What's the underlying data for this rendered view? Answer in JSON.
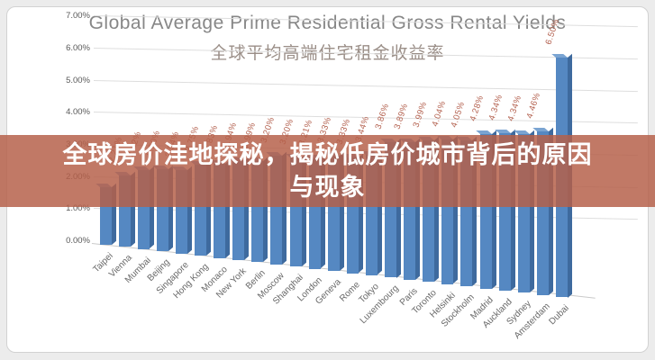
{
  "overlay": {
    "line1": "全球房价洼地探秘，揭秘低房价城市背后的原因",
    "line2": "与现象",
    "background_color": "#b55f49",
    "text_color": "#ffffff"
  },
  "chart_data": {
    "type": "bar",
    "title": "Global Average Prime Residential Gross Rental Yields",
    "subtitle": "全球平均高端住宅租金收益率",
    "categories": [
      "Taipei",
      "Vienna",
      "Mumbai",
      "Beijing",
      "Singapore",
      "Hong Kong",
      "Monaco",
      "New York",
      "Berlin",
      "Moscow",
      "Shanghai",
      "London",
      "Geneva",
      "Rome",
      "Tokyo",
      "Luxembourg",
      "Paris",
      "Toronto",
      "Helsinki",
      "Stockholm",
      "Madrid",
      "Auckland",
      "Sydney",
      "Amsterdam",
      "Dubai"
    ],
    "values": [
      1.8,
      2.21,
      2.42,
      2.5,
      2.54,
      2.75,
      2.83,
      2.94,
      2.99,
      3.2,
      3.2,
      3.21,
      3.33,
      3.33,
      3.44,
      3.86,
      3.89,
      3.99,
      4.04,
      4.05,
      4.28,
      4.34,
      4.34,
      4.46,
      6.5
    ],
    "value_labels": [
      "",
      "2.21%",
      "2.42%",
      "2.50%",
      "2.54%",
      "2.75%",
      "2.83%",
      "2.94%",
      "2.99%",
      "3.20%",
      "3.20%",
      "3.21%",
      "3.33%",
      "3.33%",
      "3.44%",
      "3.86%",
      "3.89%",
      "3.99%",
      "4.04%",
      "4.05%",
      "4.28%",
      "4.34%",
      "4.34%",
      "4.46%",
      "6.50%"
    ],
    "ylim": [
      0,
      7
    ],
    "yticks": [
      "0.00%",
      "1.00%",
      "2.00%",
      "3.00%",
      "4.00%",
      "5.00%",
      "6.00%",
      "7.00%"
    ],
    "grid": "on",
    "legend": "none",
    "style": "3d-column",
    "bar_color": "#5588c2",
    "bar_side_color": "#3e6a9e",
    "bar_top_color": "#7aa4d2",
    "value_label_color": "#b3604e"
  }
}
